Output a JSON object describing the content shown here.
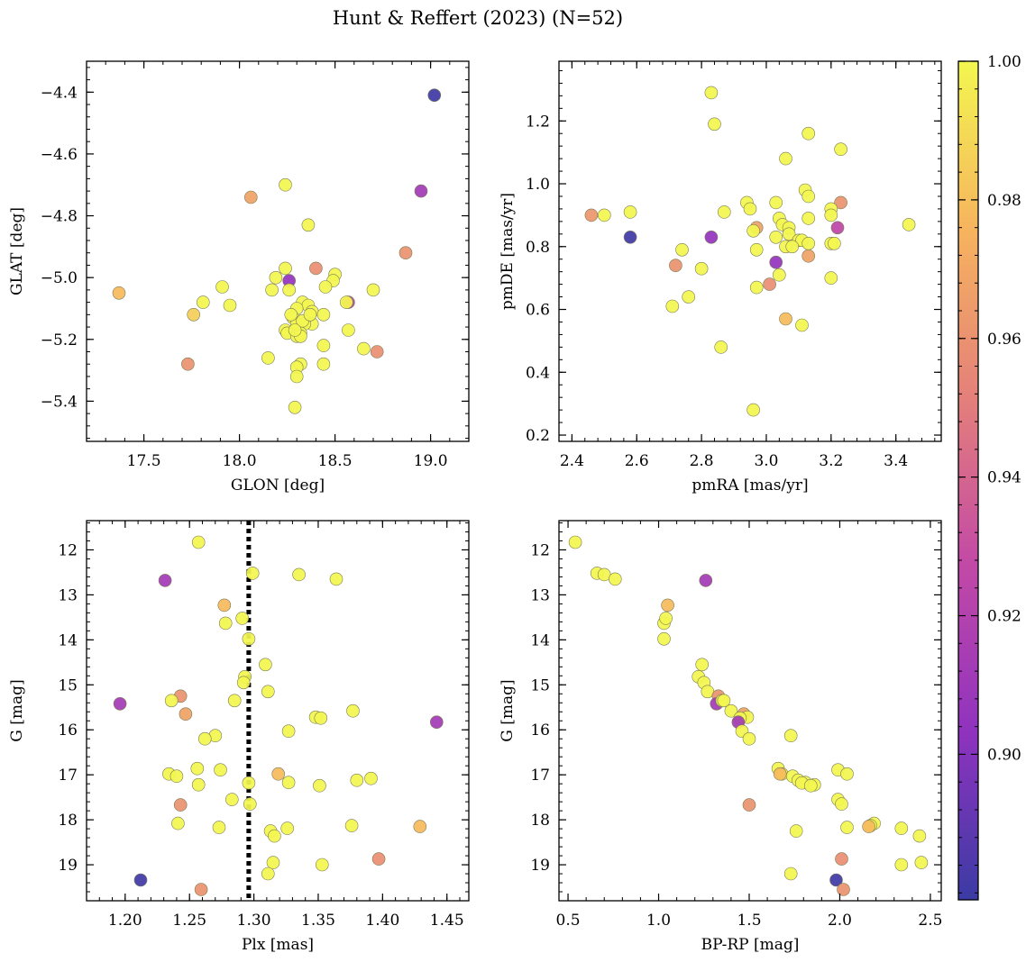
{
  "figure": {
    "title": "Hunt & Reffert (2023) (N=52)"
  },
  "colorbar": {
    "min": 0.879,
    "max": 1.0,
    "ticks": [
      0.9,
      0.92,
      0.94,
      0.96,
      0.98,
      1.0
    ],
    "tick_labels": [
      "0.90",
      "0.92",
      "0.94",
      "0.96",
      "0.98",
      "1.00"
    ]
  },
  "chart_data": [
    {
      "type": "scatter",
      "title": "",
      "xlabel": "GLON [deg]",
      "ylabel": "GLAT [deg]",
      "xlim": [
        17.2,
        19.2
      ],
      "ylim": [
        -5.53,
        -4.3
      ],
      "y_inverted": false,
      "xticks": [
        17.5,
        18.0,
        18.5,
        19.0
      ],
      "xtick_labels": [
        "17.5",
        "18.0",
        "18.5",
        "19.0"
      ],
      "yticks": [
        -5.4,
        -5.2,
        -5.0,
        -4.8,
        -4.6,
        -4.4
      ],
      "ytick_labels": [
        "−5.4",
        "−5.2",
        "−5.0",
        "−4.8",
        "−4.6",
        "−4.4"
      ],
      "points": [
        [
          19.02,
          -4.41,
          0.881
        ],
        [
          18.95,
          -4.72,
          0.912
        ],
        [
          18.24,
          -4.7,
          1.0
        ],
        [
          18.06,
          -4.74,
          0.968
        ],
        [
          18.36,
          -4.83,
          1.0
        ],
        [
          18.87,
          -4.92,
          0.96
        ],
        [
          18.24,
          -4.97,
          1.0
        ],
        [
          18.4,
          -4.97,
          0.958
        ],
        [
          18.5,
          -4.99,
          1.0
        ],
        [
          18.19,
          -5.0,
          1.0
        ],
        [
          18.49,
          -5.01,
          1.0
        ],
        [
          18.26,
          -5.01,
          0.905
        ],
        [
          17.91,
          -5.03,
          1.0
        ],
        [
          18.17,
          -5.04,
          1.0
        ],
        [
          18.26,
          -5.04,
          1.0
        ],
        [
          18.7,
          -5.04,
          1.0
        ],
        [
          18.45,
          -5.03,
          1.0
        ],
        [
          17.37,
          -5.05,
          0.978
        ],
        [
          18.57,
          -5.08,
          0.925
        ],
        [
          18.33,
          -5.08,
          1.0
        ],
        [
          18.36,
          -5.09,
          1.0
        ],
        [
          18.56,
          -5.08,
          1.0
        ],
        [
          17.81,
          -5.08,
          1.0
        ],
        [
          17.95,
          -5.09,
          1.0
        ],
        [
          18.3,
          -5.1,
          1.0
        ],
        [
          18.38,
          -5.11,
          1.0
        ],
        [
          18.44,
          -5.12,
          1.0
        ],
        [
          17.76,
          -5.12,
          0.985
        ],
        [
          18.28,
          -5.13,
          1.0
        ],
        [
          18.38,
          -5.15,
          1.0
        ],
        [
          18.3,
          -5.15,
          1.0
        ],
        [
          18.34,
          -5.15,
          1.0
        ],
        [
          18.57,
          -5.17,
          1.0
        ],
        [
          18.24,
          -5.17,
          1.0
        ],
        [
          18.25,
          -5.18,
          1.0
        ],
        [
          18.3,
          -5.19,
          1.0
        ],
        [
          18.32,
          -5.18,
          1.0
        ],
        [
          18.44,
          -5.22,
          1.0
        ],
        [
          18.65,
          -5.23,
          1.0
        ],
        [
          18.72,
          -5.24,
          0.958
        ],
        [
          18.15,
          -5.26,
          1.0
        ],
        [
          17.73,
          -5.28,
          0.96
        ],
        [
          18.32,
          -5.28,
          1.0
        ],
        [
          18.44,
          -5.28,
          1.0
        ],
        [
          18.3,
          -5.29,
          1.0
        ],
        [
          18.3,
          -5.32,
          1.0
        ],
        [
          18.29,
          -5.42,
          1.0
        ],
        [
          18.32,
          -5.19,
          1.0
        ],
        [
          18.27,
          -5.12,
          1.0
        ],
        [
          18.33,
          -5.14,
          1.0
        ],
        [
          18.37,
          -5.12,
          1.0
        ],
        [
          18.29,
          -5.17,
          1.0
        ]
      ]
    },
    {
      "type": "scatter",
      "title": "",
      "xlabel": "pmRA [mas/yr]",
      "ylabel": "pmDE [mas/yr]",
      "xlim": [
        2.36,
        3.54
      ],
      "ylim": [
        0.18,
        1.39
      ],
      "y_inverted": false,
      "xticks": [
        2.4,
        2.6,
        2.8,
        3.0,
        3.2,
        3.4
      ],
      "xtick_labels": [
        "2.4",
        "2.6",
        "2.8",
        "3.0",
        "3.2",
        "3.4"
      ],
      "yticks": [
        0.2,
        0.4,
        0.6,
        0.8,
        1.0,
        1.2
      ],
      "ytick_labels": [
        "0.2",
        "0.4",
        "0.6",
        "0.8",
        "1.0",
        "1.2"
      ],
      "points": [
        [
          2.83,
          1.29,
          1.0
        ],
        [
          2.84,
          1.19,
          1.0
        ],
        [
          3.13,
          1.16,
          1.0
        ],
        [
          3.23,
          1.11,
          1.0
        ],
        [
          3.06,
          1.08,
          1.0
        ],
        [
          3.12,
          0.98,
          1.0
        ],
        [
          3.13,
          0.96,
          1.0
        ],
        [
          2.94,
          0.94,
          1.0
        ],
        [
          3.03,
          0.94,
          1.0
        ],
        [
          3.23,
          0.94,
          0.96
        ],
        [
          2.95,
          0.92,
          1.0
        ],
        [
          3.2,
          0.92,
          1.0
        ],
        [
          2.87,
          0.91,
          1.0
        ],
        [
          2.46,
          0.9,
          0.962
        ],
        [
          2.5,
          0.9,
          1.0
        ],
        [
          2.58,
          0.91,
          1.0
        ],
        [
          3.2,
          0.9,
          1.0
        ],
        [
          3.04,
          0.89,
          1.0
        ],
        [
          3.13,
          0.89,
          1.0
        ],
        [
          3.05,
          0.87,
          1.0
        ],
        [
          3.44,
          0.87,
          1.0
        ],
        [
          3.07,
          0.86,
          1.0
        ],
        [
          2.97,
          0.86,
          0.968
        ],
        [
          2.96,
          0.85,
          1.0
        ],
        [
          3.22,
          0.86,
          0.925
        ],
        [
          3.07,
          0.84,
          1.0
        ],
        [
          3.03,
          0.83,
          1.0
        ],
        [
          2.58,
          0.83,
          0.881
        ],
        [
          2.83,
          0.83,
          0.905
        ],
        [
          3.1,
          0.82,
          1.0
        ],
        [
          3.11,
          0.82,
          1.0
        ],
        [
          3.13,
          0.81,
          1.0
        ],
        [
          3.2,
          0.81,
          1.0
        ],
        [
          3.21,
          0.81,
          1.0
        ],
        [
          3.06,
          0.8,
          1.0
        ],
        [
          3.08,
          0.8,
          1.0
        ],
        [
          2.97,
          0.79,
          1.0
        ],
        [
          2.74,
          0.79,
          1.0
        ],
        [
          3.13,
          0.77,
          0.968
        ],
        [
          3.03,
          0.75,
          0.905
        ],
        [
          2.72,
          0.74,
          0.96
        ],
        [
          2.8,
          0.73,
          1.0
        ],
        [
          3.04,
          0.71,
          1.0
        ],
        [
          3.2,
          0.7,
          1.0
        ],
        [
          3.01,
          0.68,
          0.958
        ],
        [
          2.97,
          0.67,
          1.0
        ],
        [
          2.76,
          0.64,
          1.0
        ],
        [
          2.71,
          0.61,
          1.0
        ],
        [
          3.06,
          0.57,
          0.978
        ],
        [
          3.11,
          0.55,
          1.0
        ],
        [
          2.86,
          0.48,
          1.0
        ],
        [
          2.96,
          0.28,
          1.0
        ]
      ]
    },
    {
      "type": "scatter",
      "title": "",
      "xlabel": "Plx [mas]",
      "ylabel": "G [mag]",
      "xlim": [
        1.17,
        1.467
      ],
      "ylim": [
        11.35,
        19.8
      ],
      "y_inverted": true,
      "vline": {
        "x": 1.296,
        "style": "dotted"
      },
      "xticks": [
        1.2,
        1.25,
        1.3,
        1.35,
        1.4,
        1.45
      ],
      "xtick_labels": [
        "1.20",
        "1.25",
        "1.30",
        "1.35",
        "1.40",
        "1.45"
      ],
      "yticks": [
        12,
        13,
        14,
        15,
        16,
        17,
        18,
        19
      ],
      "ytick_labels": [
        "12",
        "13",
        "14",
        "15",
        "16",
        "17",
        "18",
        "19"
      ],
      "points": [
        [
          1.257,
          11.83,
          1.0
        ],
        [
          1.299,
          12.52,
          1.0
        ],
        [
          1.335,
          12.55,
          1.0
        ],
        [
          1.364,
          12.65,
          1.0
        ],
        [
          1.231,
          12.68,
          0.912
        ],
        [
          1.277,
          13.23,
          0.978
        ],
        [
          1.278,
          13.63,
          1.0
        ],
        [
          1.291,
          13.52,
          1.0
        ],
        [
          1.296,
          13.98,
          1.0
        ],
        [
          1.309,
          14.55,
          1.0
        ],
        [
          1.293,
          14.82,
          1.0
        ],
        [
          1.292,
          14.95,
          1.0
        ],
        [
          1.311,
          15.15,
          1.0
        ],
        [
          1.243,
          15.25,
          0.96
        ],
        [
          1.196,
          15.42,
          0.912
        ],
        [
          1.236,
          15.35,
          1.0
        ],
        [
          1.285,
          15.35,
          1.0
        ],
        [
          1.377,
          15.58,
          1.0
        ],
        [
          1.247,
          15.65,
          0.968
        ],
        [
          1.348,
          15.72,
          1.0
        ],
        [
          1.352,
          15.74,
          1.0
        ],
        [
          1.442,
          15.83,
          0.912
        ],
        [
          1.327,
          16.03,
          1.0
        ],
        [
          1.27,
          16.13,
          1.0
        ],
        [
          1.262,
          16.2,
          1.0
        ],
        [
          1.256,
          16.86,
          1.0
        ],
        [
          1.274,
          16.89,
          1.0
        ],
        [
          1.234,
          16.98,
          1.0
        ],
        [
          1.319,
          16.98,
          0.978
        ],
        [
          1.24,
          17.03,
          1.0
        ],
        [
          1.391,
          17.08,
          1.0
        ],
        [
          1.38,
          17.12,
          1.0
        ],
        [
          1.327,
          17.17,
          1.0
        ],
        [
          1.296,
          17.18,
          1.0
        ],
        [
          1.257,
          17.22,
          1.0
        ],
        [
          1.351,
          17.24,
          1.0
        ],
        [
          1.283,
          17.55,
          1.0
        ],
        [
          1.297,
          17.65,
          1.0
        ],
        [
          1.243,
          17.67,
          0.96
        ],
        [
          1.241,
          18.08,
          1.0
        ],
        [
          1.376,
          18.13,
          1.0
        ],
        [
          1.429,
          18.15,
          0.978
        ],
        [
          1.273,
          18.17,
          1.0
        ],
        [
          1.326,
          18.19,
          1.0
        ],
        [
          1.313,
          18.25,
          1.0
        ],
        [
          1.316,
          18.36,
          1.0
        ],
        [
          1.397,
          18.87,
          0.958
        ],
        [
          1.315,
          18.95,
          1.0
        ],
        [
          1.353,
          19.0,
          1.0
        ],
        [
          1.311,
          19.2,
          1.0
        ],
        [
          1.212,
          19.34,
          0.881
        ],
        [
          1.259,
          19.55,
          0.96
        ]
      ]
    },
    {
      "type": "scatter",
      "title": "",
      "xlabel": "BP-RP [mag]",
      "ylabel": "G [mag]",
      "xlim": [
        0.45,
        2.56
      ],
      "ylim": [
        11.35,
        19.8
      ],
      "y_inverted": true,
      "xticks": [
        0.5,
        1.0,
        1.5,
        2.0,
        2.5
      ],
      "xtick_labels": [
        "0.5",
        "1.0",
        "1.5",
        "2.0",
        "2.5"
      ],
      "yticks": [
        12,
        13,
        14,
        15,
        16,
        17,
        18,
        19
      ],
      "ytick_labels": [
        "12",
        "13",
        "14",
        "15",
        "16",
        "17",
        "18",
        "19"
      ],
      "points": [
        [
          0.54,
          11.83,
          1.0
        ],
        [
          0.66,
          12.52,
          1.0
        ],
        [
          0.7,
          12.55,
          1.0
        ],
        [
          0.76,
          12.65,
          1.0
        ],
        [
          1.26,
          12.68,
          0.912
        ],
        [
          1.05,
          13.23,
          0.978
        ],
        [
          1.03,
          13.63,
          1.0
        ],
        [
          1.04,
          13.52,
          1.0
        ],
        [
          1.03,
          13.98,
          1.0
        ],
        [
          1.24,
          14.55,
          1.0
        ],
        [
          1.22,
          14.82,
          1.0
        ],
        [
          1.25,
          14.95,
          1.0
        ],
        [
          1.27,
          15.15,
          1.0
        ],
        [
          1.33,
          15.25,
          0.96
        ],
        [
          1.32,
          15.42,
          0.912
        ],
        [
          1.35,
          15.35,
          1.0
        ],
        [
          1.36,
          15.35,
          1.0
        ],
        [
          1.4,
          15.58,
          1.0
        ],
        [
          1.47,
          15.65,
          0.968
        ],
        [
          1.49,
          15.72,
          1.0
        ],
        [
          1.45,
          15.74,
          1.0
        ],
        [
          1.44,
          15.83,
          0.912
        ],
        [
          1.46,
          16.03,
          1.0
        ],
        [
          1.73,
          16.13,
          1.0
        ],
        [
          1.5,
          16.2,
          1.0
        ],
        [
          1.66,
          16.86,
          1.0
        ],
        [
          1.99,
          16.89,
          1.0
        ],
        [
          1.68,
          16.98,
          1.0
        ],
        [
          1.67,
          16.98,
          0.978
        ],
        [
          2.04,
          16.98,
          1.0
        ],
        [
          1.74,
          17.03,
          1.0
        ],
        [
          1.77,
          17.12,
          1.0
        ],
        [
          1.81,
          17.17,
          1.0
        ],
        [
          1.79,
          17.18,
          1.0
        ],
        [
          1.86,
          17.22,
          1.0
        ],
        [
          1.84,
          17.24,
          1.0
        ],
        [
          1.99,
          17.55,
          1.0
        ],
        [
          2.01,
          17.65,
          1.0
        ],
        [
          1.5,
          17.67,
          0.96
        ],
        [
          2.19,
          18.08,
          1.0
        ],
        [
          2.17,
          18.13,
          1.0
        ],
        [
          2.16,
          18.15,
          0.978
        ],
        [
          2.04,
          18.17,
          1.0
        ],
        [
          2.34,
          18.19,
          1.0
        ],
        [
          1.76,
          18.25,
          1.0
        ],
        [
          2.44,
          18.36,
          1.0
        ],
        [
          2.01,
          18.87,
          0.958
        ],
        [
          2.45,
          18.95,
          1.0
        ],
        [
          2.34,
          19.0,
          1.0
        ],
        [
          1.73,
          19.2,
          1.0
        ],
        [
          1.98,
          19.34,
          0.881
        ],
        [
          2.02,
          19.55,
          0.96
        ]
      ]
    }
  ]
}
